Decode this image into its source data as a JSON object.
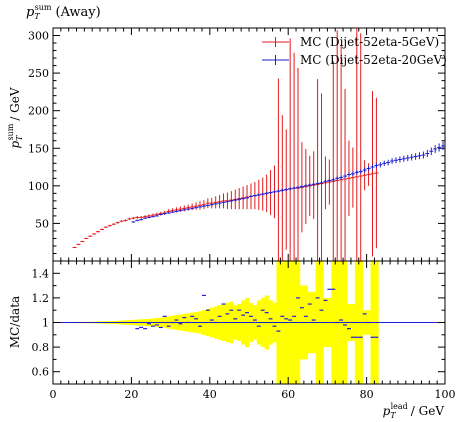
{
  "chart_data": [
    {
      "type": "scatter",
      "title": "p_T^sum (Away)",
      "title_parts": {
        "base": "p",
        "sub": "T",
        "sup": "sum",
        "rest": "(Away)"
      },
      "ylabel_parts": {
        "base": "p",
        "sub": "T",
        "sup": "sum",
        "rest": "/ GeV"
      },
      "xlim": [
        0,
        100
      ],
      "ylim": [
        0,
        310
      ],
      "yticks": [
        50,
        100,
        150,
        200,
        250,
        300
      ],
      "legend_position": "top-right",
      "series": [
        {
          "name": "MC (Dijet-52eta-5GeV)",
          "color": "#e41a1c",
          "x": [
            5.5,
            6.5,
            7.5,
            8.5,
            9.5,
            10.5,
            11.5,
            12.5,
            13.5,
            14.5,
            15.5,
            16.5,
            17.5,
            18.5,
            19.5,
            20.5,
            21.5,
            22.5,
            23.5,
            24.5,
            25.5,
            26.5,
            27.5,
            28.5,
            29.5,
            30.5,
            31.5,
            32.5,
            33.5,
            34.5,
            35.5,
            36.5,
            37.5,
            38.5,
            39.5,
            40.5,
            41.5,
            42.5,
            43.5,
            44.5,
            45.5,
            46.5,
            47.5,
            48.5,
            49.5,
            50.5,
            51.5,
            52.5,
            53.5,
            54.5,
            55.5,
            56.5,
            57.5,
            58.5,
            59.5,
            60.5,
            61.5,
            62.5,
            63.5,
            64.5,
            65.5,
            66.5,
            67.5,
            68.5,
            69.5,
            70.5,
            71.5,
            72.5,
            73.5,
            74.5,
            75.5,
            76.5,
            77.5,
            78.5,
            79.5,
            80.5,
            81.5,
            82.5
          ],
          "y": [
            18,
            22,
            26,
            30,
            33,
            36,
            39,
            42,
            45,
            47,
            49,
            51,
            53,
            54,
            56,
            57,
            58,
            58,
            59,
            60,
            61,
            62,
            63,
            64,
            66,
            67,
            68,
            69,
            70,
            71,
            72,
            73,
            74,
            75,
            77,
            77,
            78,
            79,
            80,
            80,
            81,
            82,
            83,
            84,
            85,
            86,
            87,
            88,
            89,
            90,
            91,
            92,
            93,
            94,
            95,
            96,
            97,
            97,
            98,
            99,
            100,
            101,
            102,
            103,
            104,
            105,
            106,
            107,
            108,
            109,
            110,
            111,
            112,
            113,
            114,
            115,
            116,
            117
          ],
          "yerr": [
            0.8,
            0.8,
            0.8,
            0.8,
            0.9,
            0.9,
            1,
            1,
            1,
            1.2,
            1.2,
            1.3,
            1.3,
            1.4,
            1.5,
            1.6,
            1.7,
            1.8,
            2,
            2,
            2.2,
            2.4,
            2.6,
            2.8,
            3,
            3.2,
            3.4,
            3.6,
            3.8,
            4,
            4.5,
            5,
            5.5,
            6,
            6.5,
            7,
            8,
            9,
            10,
            11,
            12,
            13,
            14,
            15,
            16,
            17,
            18,
            20,
            22,
            25,
            30,
            35,
            150,
            100,
            80,
            200,
            180,
            160,
            60,
            50,
            40,
            45,
            140,
            120,
            35,
            30,
            160,
            200,
            180,
            120,
            50,
            40,
            240,
            190,
            20,
            15,
            110,
            100
          ]
        },
        {
          "name": "MC (Dijet-52eta-20GeV)",
          "color": "#1f1fd6",
          "x": [
            20.5,
            21.5,
            22.5,
            23.5,
            24.5,
            25.5,
            26.5,
            27.5,
            28.5,
            29.5,
            30.5,
            31.5,
            32.5,
            33.5,
            34.5,
            35.5,
            36.5,
            37.5,
            38.5,
            39.5,
            40.5,
            41.5,
            42.5,
            43.5,
            44.5,
            45.5,
            46.5,
            47.5,
            48.5,
            49.5,
            50.5,
            51.5,
            52.5,
            53.5,
            54.5,
            55.5,
            56.5,
            57.5,
            58.5,
            59.5,
            60.5,
            61.5,
            62.5,
            63.5,
            64.5,
            65.5,
            66.5,
            67.5,
            68.5,
            69.5,
            70.5,
            71.5,
            72.5,
            73.5,
            74.5,
            75.5,
            76.5,
            77.5,
            78.5,
            79.5,
            80.5,
            81.5,
            82.5,
            83.5,
            84.5,
            85.5,
            86.5,
            87.5,
            88.5,
            89.5,
            90.5,
            91.5,
            92.5,
            93.5,
            94.5,
            95.5,
            96.5,
            97.5,
            98.5,
            99.5
          ],
          "y": [
            52,
            54,
            55,
            57,
            58,
            59,
            60,
            62,
            63,
            64,
            65,
            66,
            67,
            68,
            69,
            70,
            71,
            72,
            73,
            74,
            75,
            76,
            77,
            78,
            79,
            80,
            81,
            82,
            83,
            84,
            86,
            87,
            88,
            89,
            90,
            91,
            92,
            93,
            94,
            95,
            96,
            97,
            98,
            99,
            100,
            101,
            102,
            103,
            104,
            106,
            107,
            108,
            110,
            111,
            113,
            115,
            116,
            118,
            119,
            121,
            123,
            125,
            127,
            128,
            130,
            131,
            133,
            134,
            135,
            136,
            137,
            138,
            139,
            140,
            141,
            143,
            146,
            149,
            151,
            153
          ],
          "yerr": [
            1,
            1,
            1,
            1,
            1,
            1,
            1,
            1,
            1,
            1,
            1,
            1,
            1,
            1,
            1,
            1,
            1,
            1,
            1.2,
            1.2,
            1.2,
            1.2,
            1.3,
            1.3,
            1.3,
            1.4,
            1.4,
            1.5,
            1.5,
            1.5,
            1.6,
            1.6,
            1.7,
            1.7,
            1.8,
            1.8,
            1.9,
            1.9,
            2,
            2,
            2,
            2.1,
            2.1,
            2.2,
            2.2,
            2.3,
            2.3,
            2.4,
            2.4,
            2.5,
            2.5,
            2.6,
            2.6,
            2.7,
            2.7,
            2.8,
            2.9,
            3,
            3,
            3.1,
            3.2,
            3.3,
            3.4,
            3.5,
            3.6,
            3.7,
            3.8,
            3.9,
            4,
            4.1,
            4.2,
            4.3,
            4.4,
            4.5,
            4.6,
            4.8,
            5,
            5.2,
            5.4,
            5.6
          ]
        }
      ]
    },
    {
      "type": "scatter",
      "ylabel": "MC/data",
      "xlabel_parts": {
        "base": "p",
        "sub": "T",
        "sup": "lead",
        "rest": "/ GeV"
      },
      "xlim": [
        0,
        100
      ],
      "ylim": [
        0.5,
        1.5
      ],
      "yticks": [
        0.6,
        0.8,
        1,
        1.2,
        1.4
      ],
      "ytick_labels": [
        "0.6",
        "0.8",
        "1",
        "1.2",
        "1.4"
      ],
      "xticks": [
        0,
        20,
        40,
        60,
        80,
        100
      ],
      "xtick_labels": [
        "0",
        "20",
        "40",
        "60",
        "80",
        "100"
      ],
      "reference_line": 1,
      "uncertainty_band": {
        "color": "#ffff00",
        "x": [
          5.5,
          6.5,
          7.5,
          8.5,
          9.5,
          10.5,
          11.5,
          12.5,
          13.5,
          14.5,
          15.5,
          16.5,
          17.5,
          18.5,
          19.5,
          20.5,
          21.5,
          22.5,
          23.5,
          24.5,
          25.5,
          26.5,
          27.5,
          28.5,
          29.5,
          30.5,
          31.5,
          32.5,
          33.5,
          34.5,
          35.5,
          36.5,
          37.5,
          38.5,
          39.5,
          40.5,
          41.5,
          42.5,
          43.5,
          44.5,
          45.5,
          46.5,
          47.5,
          48.5,
          49.5,
          50.5,
          51.5,
          52.5,
          53.5,
          54.5,
          55.5,
          56.5,
          57.5,
          58.5,
          59.5,
          60.5,
          61.5,
          62.5,
          63.5,
          64.5,
          65.5,
          66.5,
          67.5,
          68.5,
          69.5,
          70.5,
          71.5,
          72.5,
          73.5,
          74.5,
          75.5,
          76.5,
          77.5,
          78.5,
          79.5,
          80.5,
          81.5,
          82.5
        ],
        "half_width": [
          0.005,
          0.005,
          0.005,
          0.006,
          0.006,
          0.007,
          0.008,
          0.009,
          0.01,
          0.011,
          0.012,
          0.014,
          0.016,
          0.018,
          0.02,
          0.022,
          0.024,
          0.026,
          0.028,
          0.03,
          0.033,
          0.036,
          0.04,
          0.044,
          0.05,
          0.055,
          0.06,
          0.065,
          0.07,
          0.075,
          0.08,
          0.085,
          0.09,
          0.1,
          0.11,
          0.12,
          0.13,
          0.14,
          0.15,
          0.16,
          0.17,
          0.14,
          0.15,
          0.18,
          0.2,
          0.16,
          0.14,
          0.18,
          0.2,
          0.22,
          0.18,
          0.16,
          0.6,
          0.6,
          0.6,
          0.6,
          0.6,
          0.6,
          0.3,
          0.3,
          0.25,
          0.25,
          0.6,
          0.6,
          0.2,
          0.2,
          0.6,
          0.6,
          0.6,
          0.6,
          0.15,
          0.15,
          0.6,
          0.6,
          0.1,
          0.1,
          0.6,
          0.6
        ]
      },
      "series": [
        {
          "name": "",
          "color": "#1f1fd6",
          "x": [
            21.5,
            22.5,
            23.5,
            24.5,
            25.5,
            26.5,
            27.5,
            28.5,
            29.5,
            30.5,
            31.5,
            32.5,
            33.5,
            34.5,
            35.5,
            36.5,
            37.5,
            38.5,
            39.5,
            40.5,
            41.5,
            42.5,
            43.5,
            44.5,
            45.5,
            46.5,
            47.5,
            48.5,
            49.5,
            50.5,
            51.5,
            52.5,
            53.5,
            54.5,
            55.5,
            56.5,
            57.5,
            58.5,
            59.5,
            60.5,
            61.5,
            62.5,
            63.5,
            64.5,
            65.5,
            66.5,
            67.5,
            68.5,
            69.5,
            70.5,
            71.5,
            72.5,
            73.5,
            74.5,
            75.5,
            76.5,
            77.5,
            78.5,
            79.5,
            80.5,
            81.5,
            82.5
          ],
          "y": [
            0.95,
            0.96,
            0.95,
            0.99,
            0.97,
            0.98,
            0.96,
            1.05,
            0.97,
            1.0,
            1.02,
            0.99,
            1.04,
            1.0,
            1.05,
            1.03,
            0.97,
            1.22,
            1.1,
            1.02,
            1.0,
            1.05,
            1.15,
            1.07,
            1.1,
            1.03,
            1.1,
            1.06,
            1.08,
            1.05,
            1.02,
            0.97,
            1.1,
            1.08,
            1.03,
            0.97,
            0.93,
            1.05,
            1.03,
            1.02,
            1.05,
            1.2,
            1.12,
            1.05,
            1.15,
            1.02,
            1.2,
            1.1,
            1.18,
            1.27,
            1.27,
            1.0,
            1.02,
            0.98,
            0.95,
            0.88,
            0.88,
            0.88,
            1.07,
            1.0,
            0.88,
            0.88
          ],
          "yerr": [
            0.01,
            0.01,
            0.01,
            0.01,
            0.01,
            0.01,
            0.01,
            0.01,
            0.01,
            0.01,
            0.01,
            0.01,
            0.01,
            0.01,
            0.01,
            0.01,
            0.01,
            0.01,
            0.01,
            0.01,
            0.01,
            0.01,
            0.01,
            0.01,
            0.01,
            0.01,
            0.01,
            0.01,
            0.01,
            0.01,
            0.01,
            0.01,
            0.01,
            0.01,
            0.01,
            0.01,
            0.01,
            0.01,
            0.01,
            0.01,
            0.01,
            0.01,
            0.01,
            0.01,
            0.01,
            0.01,
            0.01,
            0.01,
            0.01,
            0.01,
            0.01,
            0.01,
            0.01,
            0.01,
            0.01,
            0.01,
            0.01,
            0.01,
            0.01,
            0.01,
            0.01,
            0.01
          ]
        }
      ]
    }
  ]
}
